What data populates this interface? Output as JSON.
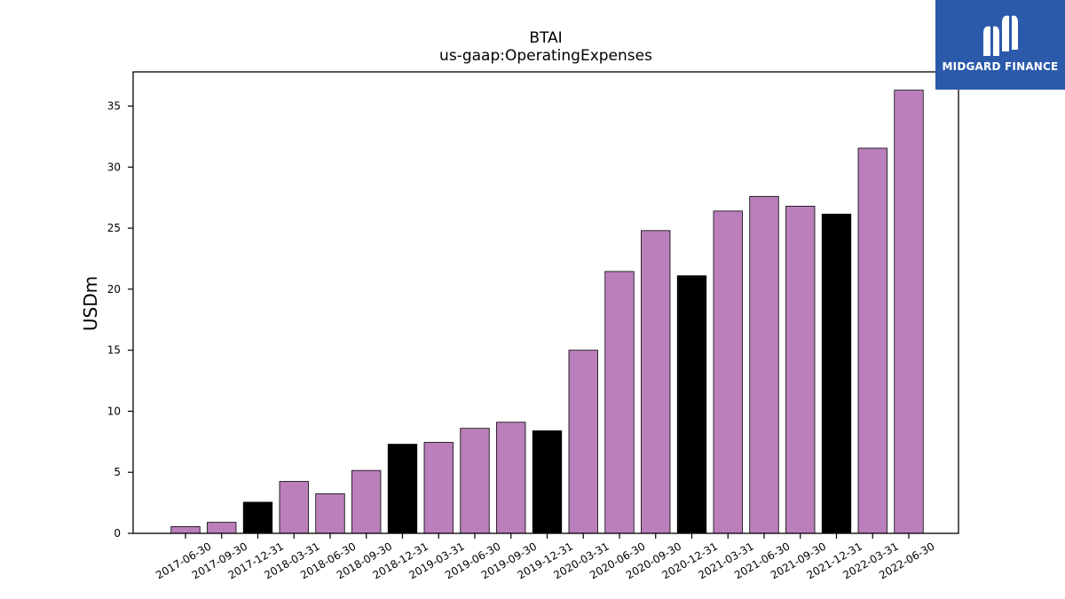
{
  "chart_data": {
    "type": "bar",
    "title": "BTAI",
    "subtitle": "us-gaap:OperatingExpenses",
    "xlabel": "",
    "ylabel": "USDm",
    "ylim": [
      0,
      37.8
    ],
    "yticks": [
      0,
      5,
      10,
      15,
      20,
      25,
      30,
      35
    ],
    "grid": false,
    "categories": [
      "2017-06-30",
      "2017-09-30",
      "2017-12-31",
      "2018-03-31",
      "2018-06-30",
      "2018-09-30",
      "2018-12-31",
      "2019-03-31",
      "2019-06-30",
      "2019-09-30",
      "2019-12-31",
      "2020-03-31",
      "2020-06-30",
      "2020-09-30",
      "2020-12-31",
      "2021-03-31",
      "2021-06-30",
      "2021-09-30",
      "2021-12-31",
      "2022-03-31",
      "2022-06-30"
    ],
    "values": [
      0.55,
      0.9,
      2.55,
      4.25,
      3.25,
      5.15,
      7.3,
      7.45,
      8.6,
      9.1,
      8.4,
      15.0,
      21.45,
      24.8,
      21.1,
      26.4,
      27.6,
      26.8,
      26.15,
      31.55,
      36.3
    ],
    "bar_kinds": [
      "q",
      "q",
      "fy",
      "q",
      "q",
      "q",
      "fy",
      "q",
      "q",
      "q",
      "fy",
      "q",
      "q",
      "q",
      "fy",
      "q",
      "q",
      "q",
      "fy",
      "q",
      "q"
    ],
    "colors": {
      "q": "#bb7fbc",
      "fy": "#000000"
    }
  },
  "logo": {
    "text": "MIDGARD FINANCE",
    "background": "#2c5aaa"
  }
}
